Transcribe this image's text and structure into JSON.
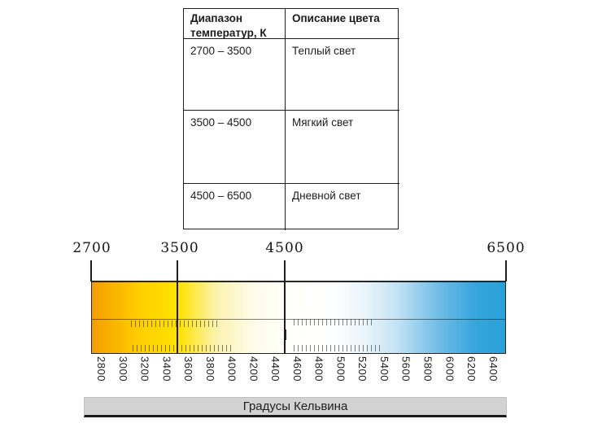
{
  "table": {
    "headers": [
      "Диапазон температур, К",
      "Описание цвета"
    ],
    "rows": [
      {
        "range": "2700 – 3500",
        "description": "Теплый  свет"
      },
      {
        "range": "3500 – 4500",
        "description": "Мягкий свет"
      },
      {
        "range": "4500 – 6500",
        "description": "Дневной свет"
      }
    ]
  },
  "scale": {
    "top_labels": [
      "2700",
      "3500",
      "4500",
      "6500"
    ],
    "tick_labels": [
      "2800",
      "3000",
      "3200",
      "3400",
      "3600",
      "3800",
      "4000",
      "4200",
      "4400",
      "4600",
      "4800",
      "5000",
      "5200",
      "5400",
      "5600",
      "5800",
      "6000",
      "6200",
      "6400"
    ],
    "axis_title": "Градусы Кельвина",
    "range_kelvin": [
      2700,
      6500
    ],
    "colors": {
      "warm_end": "#F29E00",
      "yellow": "#FFE200",
      "neutral": "#FFFFFF",
      "cool_end": "#2AA1DB",
      "footer_bg": "#D2D2D2"
    }
  }
}
